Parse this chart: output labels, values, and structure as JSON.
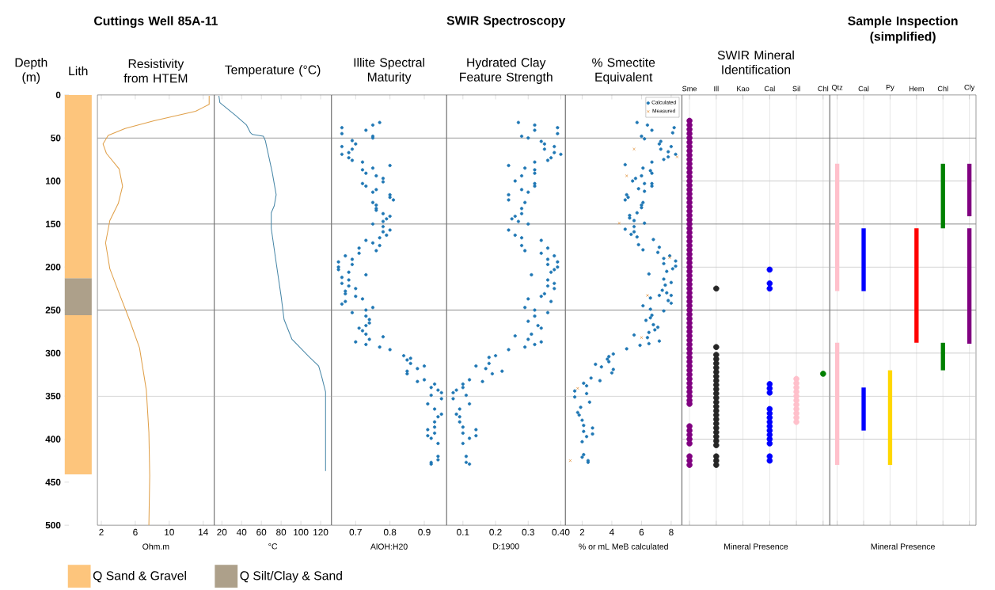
{
  "chart_data": [
    {
      "type": "bar",
      "subtitle": "Lith",
      "ylabel": "Depth (m)",
      "categories": [
        null
      ],
      "stacked": true,
      "ylim": [
        500,
        0
      ],
      "yticks": [
        0,
        50,
        100,
        150,
        200,
        250,
        300,
        350,
        400,
        450,
        500
      ],
      "tick_labels": "y",
      "legend": "bottom",
      "series": [
        {
          "name": "Q Sand & Gravel",
          "color": "#fdc57c",
          "values": [
            213
          ]
        },
        {
          "name": "Q Silt/Clay & Sand",
          "color": "#ada08a",
          "values": [
            43
          ]
        },
        {
          "color": "#fdc57c",
          "values": [
            185
          ]
        }
      ]
    },
    {
      "type": "line",
      "title": "Cuttings Well 85A-11",
      "subtitle": "Resistivity from HTEM",
      "xlabel": "Ohm.m",
      "color": "#e0a04a",
      "xlim": [
        1.54,
        15.3
      ],
      "xticks": [
        2,
        6,
        10,
        14
      ],
      "ylim": [
        500,
        0
      ],
      "tick_labels": "x",
      "x": [
        14.7,
        14.7,
        13.1,
        8.2,
        4.8,
        2.8,
        2.2,
        2.6,
        4.1,
        4.5,
        4.0,
        3.0,
        2.5,
        3.0,
        4.0,
        5.3,
        6.5,
        7.3,
        7.6,
        7.7,
        7.6
      ],
      "values": [
        1,
        11,
        19,
        30,
        39,
        47,
        57,
        68,
        86,
        106,
        126,
        146,
        172,
        202,
        228,
        261,
        294,
        343,
        392,
        442,
        500
      ],
      "ref_lines": [
        {
          "axis": "y",
          "value": 50,
          "color": "#808080"
        },
        {
          "axis": "y",
          "value": 150,
          "color": "#808080"
        },
        {
          "axis": "y",
          "value": 250,
          "color": "#808080"
        },
        {
          "axis": "y",
          "value": 350,
          "color": "#c8c8c8"
        }
      ]
    },
    {
      "type": "line",
      "subtitle": "Temperature (°C)",
      "xlabel": "°C",
      "color": "#4a88a8",
      "xlim": [
        12.3,
        130.8
      ],
      "xticks": [
        20,
        40,
        60,
        80,
        100,
        120
      ],
      "ylim": [
        500,
        0
      ],
      "tick_labels": "x",
      "x": [
        17,
        18,
        34,
        45,
        49,
        51,
        62,
        64,
        71,
        75,
        73,
        70,
        70,
        75,
        80,
        83,
        91,
        108,
        118,
        121,
        125,
        125
      ],
      "values": [
        1,
        9,
        24,
        35,
        44,
        46,
        48,
        53,
        90,
        116,
        129,
        137,
        155,
        195,
        234,
        261,
        284,
        304,
        315,
        327,
        345,
        437
      ],
      "ref_lines": [
        {
          "axis": "y",
          "value": 50,
          "color": "#808080"
        },
        {
          "axis": "y",
          "value": 150,
          "color": "#808080"
        },
        {
          "axis": "y",
          "value": 250,
          "color": "#808080"
        },
        {
          "axis": "y",
          "value": 350,
          "color": "#c8c8c8"
        }
      ]
    },
    {
      "type": "scatter",
      "subtitle": "Illite Spectral Maturity",
      "xlabel": "AlOH:H20",
      "color": "#1f77b4",
      "marker": "circle",
      "xlim": [
        0.63,
        0.965
      ],
      "xticks": [
        0.7,
        0.8,
        0.9
      ],
      "ylim": [
        500,
        0
      ],
      "tick_labels": "x",
      "x": [
        0.77,
        0.75,
        0.73,
        0.66,
        0.66,
        0.75,
        0.75,
        0.69,
        0.7,
        0.66,
        0.69,
        0.68,
        0.66,
        0.68,
        0.69,
        0.72,
        0.8,
        0.72,
        0.75,
        0.73,
        0.76,
        0.78,
        0.78,
        0.72,
        0.73,
        0.76,
        0.75,
        0.8,
        0.8,
        0.81,
        0.75,
        0.76,
        0.76,
        0.76,
        0.78,
        0.8,
        0.79,
        0.78,
        0.75,
        0.78,
        0.8,
        0.78,
        0.79,
        0.77,
        0.73,
        0.75,
        0.77,
        0.71,
        0.76,
        0.71,
        0.67,
        0.69,
        0.65,
        0.69,
        0.65,
        0.65,
        0.68,
        0.73,
        0.66,
        0.68,
        0.66,
        0.68,
        0.7,
        0.67,
        0.67,
        0.7,
        0.72,
        0.67,
        0.66,
        0.75,
        0.73,
        0.69,
        0.73,
        0.74,
        0.74,
        0.73,
        0.71,
        0.72,
        0.73,
        0.78,
        0.74,
        0.7,
        0.73,
        0.77,
        0.8,
        0.84,
        0.86,
        0.85,
        0.86,
        0.9,
        0.88,
        0.85,
        0.85,
        0.9,
        0.88,
        0.93,
        0.92,
        0.94,
        0.95,
        0.92,
        0.95,
        0.91,
        0.93,
        0.95,
        0.94,
        0.93,
        0.93,
        0.91,
        0.93,
        0.91,
        0.92,
        0.94,
        0.94,
        0.94,
        0.92,
        0.92
      ],
      "values": [
        32,
        35,
        41,
        38,
        45,
        48,
        50,
        53,
        57,
        60,
        63,
        67,
        69,
        73,
        76,
        78,
        82,
        87,
        85,
        91,
        94,
        97,
        101,
        103,
        106,
        110,
        113,
        116,
        119,
        122,
        125,
        128,
        132,
        134,
        138,
        141,
        144,
        147,
        150,
        153,
        157,
        159,
        163,
        166,
        169,
        172,
        175,
        178,
        181,
        184,
        187,
        191,
        194,
        197,
        200,
        203,
        206,
        209,
        212,
        215,
        219,
        222,
        225,
        228,
        231,
        234,
        237,
        240,
        243,
        247,
        250,
        253,
        257,
        261,
        265,
        268,
        271,
        274,
        278,
        281,
        284,
        287,
        290,
        293,
        296,
        303,
        306,
        308,
        312,
        315,
        318,
        321,
        324,
        331,
        333,
        336,
        340,
        343,
        346,
        349,
        353,
        359,
        365,
        371,
        374,
        380,
        386,
        389,
        393,
        396,
        399,
        405,
        420,
        424,
        427,
        429
      ],
      "ref_lines": [
        {
          "axis": "y",
          "value": 50,
          "color": "#808080"
        },
        {
          "axis": "y",
          "value": 150,
          "color": "#808080"
        },
        {
          "axis": "y",
          "value": 250,
          "color": "#808080"
        },
        {
          "axis": "y",
          "value": 350,
          "color": "#c8c8c8"
        }
      ]
    },
    {
      "type": "scatter",
      "title": "SWIR Spectroscopy",
      "subtitle": "Hydrated Clay Feature Strength",
      "xlabel": "D:1900",
      "color": "#1f77b4",
      "marker": "circle",
      "xlim": [
        0.05,
        0.414
      ],
      "xticks": [
        0.1,
        0.2,
        0.3,
        {
          "value": 0.4,
          "label": "0.40"
        }
      ],
      "ylim": [
        500,
        0
      ],
      "tick_labels": "x",
      "x": [
        0.27,
        0.32,
        0.32,
        0.28,
        0.3,
        0.39,
        0.39,
        0.34,
        0.35,
        0.38,
        0.35,
        0.38,
        0.4,
        0.37,
        0.36,
        0.32,
        0.24,
        0.29,
        0.32,
        0.32,
        0.28,
        0.26,
        0.28,
        0.3,
        0.32,
        0.32,
        0.24,
        0.24,
        0.29,
        0.28,
        0.28,
        0.25,
        0.26,
        0.27,
        0.3,
        0.24,
        0.26,
        0.28,
        0.34,
        0.28,
        0.29,
        0.36,
        0.34,
        0.38,
        0.36,
        0.39,
        0.36,
        0.39,
        0.37,
        0.31,
        0.38,
        0.36,
        0.38,
        0.36,
        0.38,
        0.35,
        0.34,
        0.3,
        0.37,
        0.29,
        0.32,
        0.36,
        0.32,
        0.3,
        0.33,
        0.34,
        0.31,
        0.3,
        0.34,
        0.29,
        0.32,
        0.26,
        0.24,
        0.2,
        0.18,
        0.18,
        0.22,
        0.19,
        0.14,
        0.17,
        0.12,
        0.16,
        0.1,
        0.1,
        0.08,
        0.07,
        0.11,
        0.07,
        0.12,
        0.09,
        0.08,
        0.09,
        0.09,
        0.1,
        0.14,
        0.1,
        0.14,
        0.12,
        0.1,
        0.11,
        0.11,
        0.12
      ],
      "values": [
        32,
        35,
        41,
        48,
        50,
        38,
        45,
        54,
        57,
        60,
        63,
        67,
        69,
        73,
        76,
        78,
        82,
        85,
        87,
        91,
        94,
        100,
        110,
        113,
        103,
        106,
        116,
        122,
        125,
        132,
        138,
        144,
        141,
        147,
        150,
        157,
        163,
        166,
        169,
        175,
        181,
        178,
        184,
        187,
        191,
        194,
        197,
        200,
        206,
        209,
        203,
        215,
        219,
        222,
        225,
        231,
        234,
        237,
        240,
        247,
        250,
        253,
        257,
        263,
        268,
        271,
        278,
        284,
        287,
        293,
        290,
        280,
        296,
        303,
        305,
        312,
        321,
        324,
        315,
        318,
        331,
        333,
        336,
        340,
        343,
        346,
        349,
        353,
        359,
        365,
        371,
        374,
        380,
        386,
        389,
        393,
        396,
        399,
        405,
        420,
        427,
        429
      ],
      "ref_lines": [
        {
          "axis": "y",
          "value": 50,
          "color": "#808080"
        },
        {
          "axis": "y",
          "value": 150,
          "color": "#808080"
        },
        {
          "axis": "y",
          "value": 250,
          "color": "#808080"
        },
        {
          "axis": "y",
          "value": 350,
          "color": "#c8c8c8"
        }
      ]
    },
    {
      "type": "scatter",
      "subtitle": "% Smectite Equivalent",
      "xlabel": "% or mL MeB calculated",
      "xlim": [
        0.87,
        8.71
      ],
      "xticks": [
        2,
        4,
        6,
        8
      ],
      "ylim": [
        500,
        0
      ],
      "tick_labels": "x",
      "legend": "top right",
      "series": [
        {
          "name": "Calculated",
          "color": "#1f77b4",
          "marker": "circle",
          "x": [
            5.7,
            6.4,
            6.7,
            6.0,
            6.2,
            8.2,
            8.1,
            7.3,
            7.2,
            7.3,
            8.0,
            7.8,
            7.5,
            7.8,
            8.3,
            6.7,
            4.9,
            6.6,
            6.7,
            6.1,
            6.0,
            5.6,
            5.4,
            6.2,
            6.7,
            6.7,
            5.8,
            6.2,
            5.0,
            5.1,
            4.9,
            6.1,
            6.0,
            6.0,
            5.2,
            5.2,
            5.7,
            5.5,
            6.2,
            4.9,
            5.5,
            5.3,
            5.5,
            5.7,
            6.8,
            5.8,
            6.1,
            7.2,
            7.1,
            7.5,
            7.9,
            7.5,
            8.3,
            7.7,
            8.3,
            8.1,
            6.5,
            7.5,
            8.0,
            7.6,
            7.4,
            7.7,
            8.0,
            7.2,
            6.6,
            7.8,
            8.0,
            6.1,
            6.6,
            7.5,
            6.7,
            6.6,
            6.3,
            6.8,
            6.9,
            7.1,
            6.5,
            5.5,
            6.4,
            7.2,
            6.5,
            5.9,
            5.0,
            4.1,
            3.8,
            3.7,
            3.8,
            3.3,
            4.0,
            4.1,
            2.9,
            2.6,
            3.2,
            2.3,
            2.1,
            1.5,
            1.5,
            2.3,
            2.5,
            1.9,
            1.7,
            1.8,
            2.0,
            2.1,
            2.7,
            2.1,
            2.7,
            2.3,
            2.0,
            2.1,
            2.0,
            2.4,
            2.4
          ],
          "values": [
            32,
            35,
            41,
            48,
            51,
            38,
            44,
            54,
            57,
            63,
            60,
            66,
            75,
            72,
            69,
            78,
            81,
            88,
            91,
            85,
            94,
            97,
            100,
            103,
            103,
            106,
            109,
            112,
            116,
            119,
            122,
            125,
            128,
            131,
            140,
            143,
            137,
            146,
            149,
            156,
            153,
            162,
            159,
            165,
            168,
            174,
            180,
            177,
            183,
            190,
            187,
            196,
            193,
            205,
            199,
            202,
            208,
            214,
            218,
            221,
            227,
            230,
            233,
            233,
            236,
            239,
            242,
            245,
            249,
            251,
            256,
            259,
            262,
            267,
            273,
            270,
            276,
            279,
            282,
            286,
            289,
            291,
            295,
            301,
            304,
            307,
            310,
            316,
            323,
            319,
            313,
            329,
            332,
            338,
            335,
            344,
            351,
            347,
            357,
            363,
            369,
            372,
            378,
            384,
            387,
            391,
            394,
            397,
            403,
            418,
            421,
            425,
            427
          ]
        },
        {
          "name": "Measured",
          "color": "#e0903a",
          "marker": "cross",
          "x": [
            5.5,
            5.0,
            4.5,
            7.9,
            8.4,
            6.4,
            6.0,
            1.7,
            1.2
          ],
          "values": [
            63,
            94,
            149,
            189,
            72,
            233,
            282,
            341,
            425
          ]
        }
      ],
      "ref_lines": [
        {
          "axis": "y",
          "value": 50,
          "color": "#808080"
        },
        {
          "axis": "y",
          "value": 150,
          "color": "#808080"
        },
        {
          "axis": "y",
          "value": 250,
          "color": "#808080"
        },
        {
          "axis": "y",
          "value": 350,
          "color": "#c8c8c8"
        }
      ]
    },
    {
      "type": "scatter",
      "subtitle": "SWIR Mineral Identification",
      "xlabel": "Mineral Presence",
      "categories": [
        "Sme",
        "Ill",
        "Kao",
        "Cal",
        "Sil",
        "Chl"
      ],
      "marker": "circle",
      "ylim": [
        500,
        0
      ],
      "tick_labels": "x",
      "grid": "x",
      "series": [
        {
          "color": "#800080",
          "x": [
            "Sme",
            "Sme",
            "Sme",
            "Sme",
            "Sme",
            "Sme",
            "Sme",
            "Sme",
            "Sme",
            "Sme",
            "Sme",
            "Sme",
            "Sme",
            "Sme",
            "Sme",
            "Sme",
            "Sme",
            "Sme",
            "Sme",
            "Sme",
            "Sme",
            "Sme",
            "Sme",
            "Sme",
            "Sme",
            "Sme",
            "Sme",
            "Sme",
            "Sme",
            "Sme",
            "Sme",
            "Sme",
            "Sme",
            "Sme",
            "Sme",
            "Sme",
            "Sme",
            "Sme",
            "Sme",
            "Sme",
            "Sme",
            "Sme",
            "Sme",
            "Sme",
            "Sme",
            "Sme",
            "Sme",
            "Sme",
            "Sme",
            "Sme",
            "Sme",
            "Sme",
            "Sme",
            "Sme",
            "Sme",
            "Sme",
            "Sme",
            "Sme",
            "Sme",
            "Sme",
            "Sme",
            "Sme",
            "Sme",
            "Sme",
            "Sme",
            "Sme",
            "Sme",
            "Sme",
            "Sme",
            "Sme",
            "Sme",
            "Sme",
            "Sme",
            "Sme",
            "Sme"
          ],
          "values": [
            30,
            35,
            40,
            45,
            50,
            55,
            60,
            65,
            70,
            75,
            80,
            85,
            90,
            95,
            100,
            105,
            110,
            115,
            120,
            125,
            130,
            135,
            140,
            145,
            150,
            155,
            160,
            165,
            170,
            175,
            180,
            185,
            190,
            195,
            200,
            205,
            210,
            215,
            220,
            225,
            230,
            235,
            240,
            245,
            250,
            255,
            260,
            265,
            270,
            275,
            280,
            285,
            290,
            295,
            300,
            305,
            310,
            315,
            320,
            325,
            330,
            335,
            340,
            345,
            350,
            355,
            359,
            385,
            390,
            395,
            400,
            405,
            420,
            425,
            430
          ]
        },
        {
          "color": "#262626",
          "x": [
            "Ill",
            "Ill",
            "Ill",
            "Ill",
            "Ill",
            "Ill",
            "Ill",
            "Ill",
            "Ill",
            "Ill",
            "Ill",
            "Ill",
            "Ill",
            "Ill",
            "Ill",
            "Ill",
            "Ill",
            "Ill",
            "Ill",
            "Ill",
            "Ill",
            "Ill",
            "Ill",
            "Ill",
            "Ill",
            "Ill",
            "Ill"
          ],
          "values": [
            225,
            293,
            302,
            307,
            312,
            317,
            322,
            327,
            332,
            337,
            342,
            347,
            352,
            357,
            362,
            367,
            372,
            377,
            382,
            387,
            392,
            397,
            402,
            407,
            420,
            425,
            430
          ]
        },
        {
          "color": "#0000ff",
          "x": [
            "Cal",
            "Cal",
            "Cal",
            "Cal",
            "Cal",
            "Cal",
            "Cal",
            "Cal",
            "Cal",
            "Cal",
            "Cal",
            "Cal",
            "Cal",
            "Cal",
            "Cal",
            "Cal",
            "Cal"
          ],
          "values": [
            203,
            219,
            225,
            336,
            341,
            346,
            365,
            370,
            375,
            380,
            385,
            390,
            395,
            400,
            405,
            420,
            425
          ]
        },
        {
          "color": "#ffc0cb",
          "x": [
            "Sil",
            "Sil",
            "Sil",
            "Sil",
            "Sil",
            "Sil",
            "Sil",
            "Sil",
            "Sil",
            "Sil",
            "Sil"
          ],
          "values": [
            330,
            335,
            340,
            345,
            350,
            355,
            360,
            365,
            370,
            375,
            380
          ]
        },
        {
          "color": "#008000",
          "x": [
            "Chl"
          ],
          "values": [
            324
          ]
        }
      ],
      "ref_lines": [
        {
          "axis": "y",
          "value": 50,
          "color": "#808080"
        },
        {
          "axis": "y",
          "value": 100,
          "color": "#c8c8c8"
        },
        {
          "axis": "y",
          "value": 150,
          "color": "#808080"
        },
        {
          "axis": "y",
          "value": 200,
          "color": "#c8c8c8"
        },
        {
          "axis": "y",
          "value": 250,
          "color": "#808080"
        },
        {
          "axis": "y",
          "value": 300,
          "color": "#c8c8c8"
        },
        {
          "axis": "y",
          "value": 350,
          "color": "#c8c8c8"
        },
        {
          "axis": "y",
          "value": 400,
          "color": "#c8c8c8"
        }
      ]
    },
    {
      "type": "bar",
      "title": "Sample Inspection (simplified)",
      "xlabel": "Mineral Presence",
      "categories": [
        "Qtz",
        "Cal",
        "Py",
        "Hem",
        "Chl",
        "Cly"
      ],
      "ylim": [
        500,
        0
      ],
      "tick_labels": "x",
      "grid": "x",
      "series": [
        {
          "colors": [
            "#ffc0cb",
            "#0000ff",
            "#ffd700",
            "#ff0000",
            "#008000",
            "#800080"
          ],
          "base": [
            80,
            155,
            320,
            155,
            80,
            80
          ],
          "values": [
            148,
            73,
            110,
            133,
            75,
            61
          ]
        },
        {
          "colors": [
            "#ffc0cb",
            "#0000ff",
            "#ffd700",
            "#ff0000",
            "#008000",
            "#800080"
          ],
          "base": [
            288,
            340,
            null,
            null,
            288,
            155
          ],
          "values": [
            142,
            50,
            null,
            null,
            32,
            134
          ]
        }
      ],
      "ref_lines": [
        {
          "axis": "y",
          "value": 50,
          "color": "#808080"
        },
        {
          "axis": "y",
          "value": 100,
          "color": "#c8c8c8"
        },
        {
          "axis": "y",
          "value": 150,
          "color": "#808080"
        },
        {
          "axis": "y",
          "value": 200,
          "color": "#c8c8c8"
        },
        {
          "axis": "y",
          "value": 250,
          "color": "#808080"
        },
        {
          "axis": "y",
          "value": 300,
          "color": "#c8c8c8"
        },
        {
          "axis": "y",
          "value": 350,
          "color": "#c8c8c8"
        },
        {
          "axis": "y",
          "value": 400,
          "color": "#c8c8c8"
        }
      ]
    }
  ]
}
